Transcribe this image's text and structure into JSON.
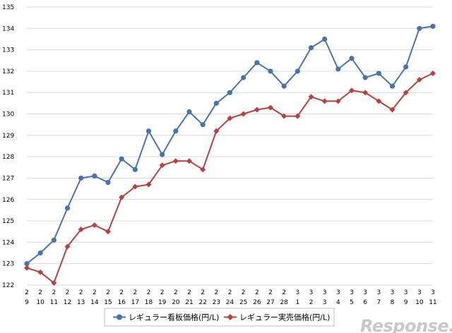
{
  "chart_data": {
    "type": "line",
    "x_top": [
      "2",
      "2",
      "2",
      "2",
      "2",
      "2",
      "2",
      "2",
      "2",
      "2",
      "2",
      "2",
      "2",
      "2",
      "2",
      "2",
      "2",
      "2",
      "2",
      "2",
      "3",
      "3",
      "3",
      "3",
      "3",
      "3",
      "3",
      "3",
      "3",
      "3",
      "3"
    ],
    "x_bottom": [
      "9",
      "10",
      "11",
      "12",
      "13",
      "14",
      "15",
      "16",
      "17",
      "18",
      "19",
      "20",
      "21",
      "22",
      "23",
      "24",
      "25",
      "26",
      "27",
      "28",
      "1",
      "2",
      "3",
      "4",
      "5",
      "6",
      "7",
      "8",
      "9",
      "10",
      "11"
    ],
    "ylim": [
      122,
      135
    ],
    "yticks": [
      "122",
      "123",
      "124",
      "125",
      "126",
      "127",
      "128",
      "129",
      "130",
      "131",
      "132",
      "133",
      "134",
      "135"
    ],
    "grid": true,
    "legend_position": "bottom",
    "series": [
      {
        "name": "レギュラー看板価格(円/L)",
        "color": "#4a72b0",
        "marker": "circle",
        "values": [
          123.0,
          123.5,
          124.1,
          125.6,
          127.0,
          127.1,
          126.8,
          127.9,
          127.4,
          129.2,
          128.1,
          129.2,
          130.1,
          129.5,
          130.5,
          131.0,
          131.7,
          132.4,
          132.0,
          131.3,
          132.0,
          133.1,
          133.5,
          132.1,
          132.6,
          131.7,
          131.9,
          131.3,
          132.2,
          134.0,
          134.1
        ]
      },
      {
        "name": "レギュラー実売価格(円/L)",
        "color": "#b8413f",
        "marker": "diamond",
        "values": [
          122.8,
          122.6,
          122.1,
          123.8,
          124.6,
          124.8,
          124.5,
          126.1,
          126.6,
          126.7,
          127.6,
          127.8,
          127.8,
          127.4,
          129.2,
          129.8,
          130.0,
          130.2,
          130.3,
          129.9,
          129.9,
          130.8,
          130.6,
          130.6,
          131.1,
          131.0,
          130.6,
          130.2,
          131.0,
          131.6,
          131.9
        ]
      }
    ]
  },
  "watermark": "Response."
}
